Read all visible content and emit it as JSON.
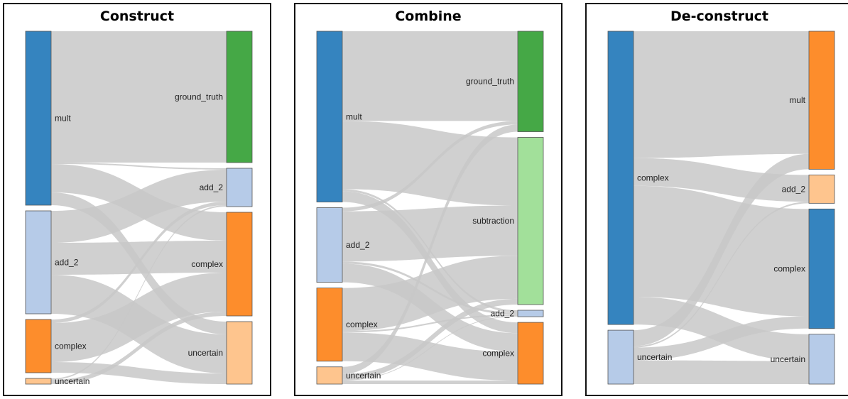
{
  "colors": {
    "link": "#c8c8c8",
    "link_dark": "#aaaaaa",
    "mult": "#3584bf",
    "add_2": "#b6cbe8",
    "complex": "#fd8d2c",
    "uncertain": "#fec58e",
    "ground_truth": "#45a846",
    "subtraction": "#a2e09a"
  },
  "diagrams": [
    {
      "title": "Construct",
      "left_nodes": [
        {
          "id": "mult",
          "label": "mult",
          "color": "mult"
        },
        {
          "id": "add_2",
          "label": "add_2",
          "color": "add_2"
        },
        {
          "id": "complex",
          "label": "complex",
          "color": "complex"
        },
        {
          "id": "uncertain",
          "label": "uncertain",
          "color": "uncertain"
        }
      ],
      "right_nodes": [
        {
          "id": "ground_truth",
          "label": "ground_truth",
          "color": "ground_truth"
        },
        {
          "id": "add_2",
          "label": "add_2",
          "color": "add_2"
        },
        {
          "id": "complex",
          "label": "complex",
          "color": "complex"
        },
        {
          "id": "uncertain",
          "label": "uncertain",
          "color": "uncertain"
        }
      ],
      "links": [
        {
          "source": "mult",
          "target": "ground_truth",
          "value": 185
        },
        {
          "source": "mult",
          "target": "add_2",
          "value": 2
        },
        {
          "source": "mult",
          "target": "complex",
          "value": 40
        },
        {
          "source": "mult",
          "target": "uncertain",
          "value": 18
        },
        {
          "source": "add_2",
          "target": "add_2",
          "value": 45
        },
        {
          "source": "add_2",
          "target": "complex",
          "value": 45
        },
        {
          "source": "add_2",
          "target": "uncertain",
          "value": 55
        },
        {
          "source": "complex",
          "target": "add_2",
          "value": 5
        },
        {
          "source": "complex",
          "target": "complex",
          "value": 55
        },
        {
          "source": "complex",
          "target": "uncertain",
          "value": 15
        },
        {
          "source": "uncertain",
          "target": "add_2",
          "value": 2
        },
        {
          "source": "uncertain",
          "target": "complex",
          "value": 6
        }
      ]
    },
    {
      "title": "Combine",
      "left_nodes": [
        {
          "id": "mult",
          "label": "mult",
          "color": "mult"
        },
        {
          "id": "add_2",
          "label": "add_2",
          "color": "add_2"
        },
        {
          "id": "complex",
          "label": "complex",
          "color": "complex"
        },
        {
          "id": "uncertain",
          "label": "uncertain",
          "color": "uncertain"
        }
      ],
      "right_nodes": [
        {
          "id": "ground_truth",
          "label": "ground_truth",
          "color": "ground_truth"
        },
        {
          "id": "subtraction",
          "label": "subtraction",
          "color": "subtraction"
        },
        {
          "id": "add_2",
          "label": "add_2",
          "color": "add_2"
        },
        {
          "id": "complex",
          "label": "complex",
          "color": "complex"
        }
      ],
      "links": [
        {
          "source": "mult",
          "target": "ground_truth",
          "value": 125
        },
        {
          "source": "mult",
          "target": "subtraction",
          "value": 95
        },
        {
          "source": "mult",
          "target": "add_2",
          "value": 3
        },
        {
          "source": "mult",
          "target": "complex",
          "value": 15
        },
        {
          "source": "add_2",
          "target": "ground_truth",
          "value": 5
        },
        {
          "source": "add_2",
          "target": "subtraction",
          "value": 70
        },
        {
          "source": "add_2",
          "target": "add_2",
          "value": 3
        },
        {
          "source": "add_2",
          "target": "complex",
          "value": 26
        },
        {
          "source": "complex",
          "target": "subtraction",
          "value": 60
        },
        {
          "source": "complex",
          "target": "add_2",
          "value": 2
        },
        {
          "source": "complex",
          "target": "complex",
          "value": 40
        },
        {
          "source": "uncertain",
          "target": "ground_truth",
          "value": 10
        },
        {
          "source": "uncertain",
          "target": "subtraction",
          "value": 8
        },
        {
          "source": "uncertain",
          "target": "add_2",
          "value": 1
        },
        {
          "source": "uncertain",
          "target": "complex",
          "value": 5
        }
      ]
    },
    {
      "title": "De-construct",
      "left_nodes": [
        {
          "id": "complex",
          "label": "complex",
          "color": "mult"
        },
        {
          "id": "uncertain",
          "label": "uncertain",
          "color": "add_2"
        }
      ],
      "right_nodes": [
        {
          "id": "mult",
          "label": "mult",
          "color": "complex"
        },
        {
          "id": "add_2",
          "label": "add_2",
          "color": "uncertain"
        },
        {
          "id": "complex",
          "label": "complex",
          "color": "mult"
        },
        {
          "id": "uncertain",
          "label": "uncertain",
          "color": "add_2"
        }
      ],
      "links": [
        {
          "source": "complex",
          "target": "mult",
          "value": 160
        },
        {
          "source": "complex",
          "target": "add_2",
          "value": 35
        },
        {
          "source": "complex",
          "target": "complex",
          "value": 140
        },
        {
          "source": "complex",
          "target": "uncertain",
          "value": 35
        },
        {
          "source": "uncertain",
          "target": "mult",
          "value": 20
        },
        {
          "source": "uncertain",
          "target": "add_2",
          "value": 2
        },
        {
          "source": "uncertain",
          "target": "complex",
          "value": 16
        },
        {
          "source": "uncertain",
          "target": "uncertain",
          "value": 30
        }
      ]
    }
  ]
}
